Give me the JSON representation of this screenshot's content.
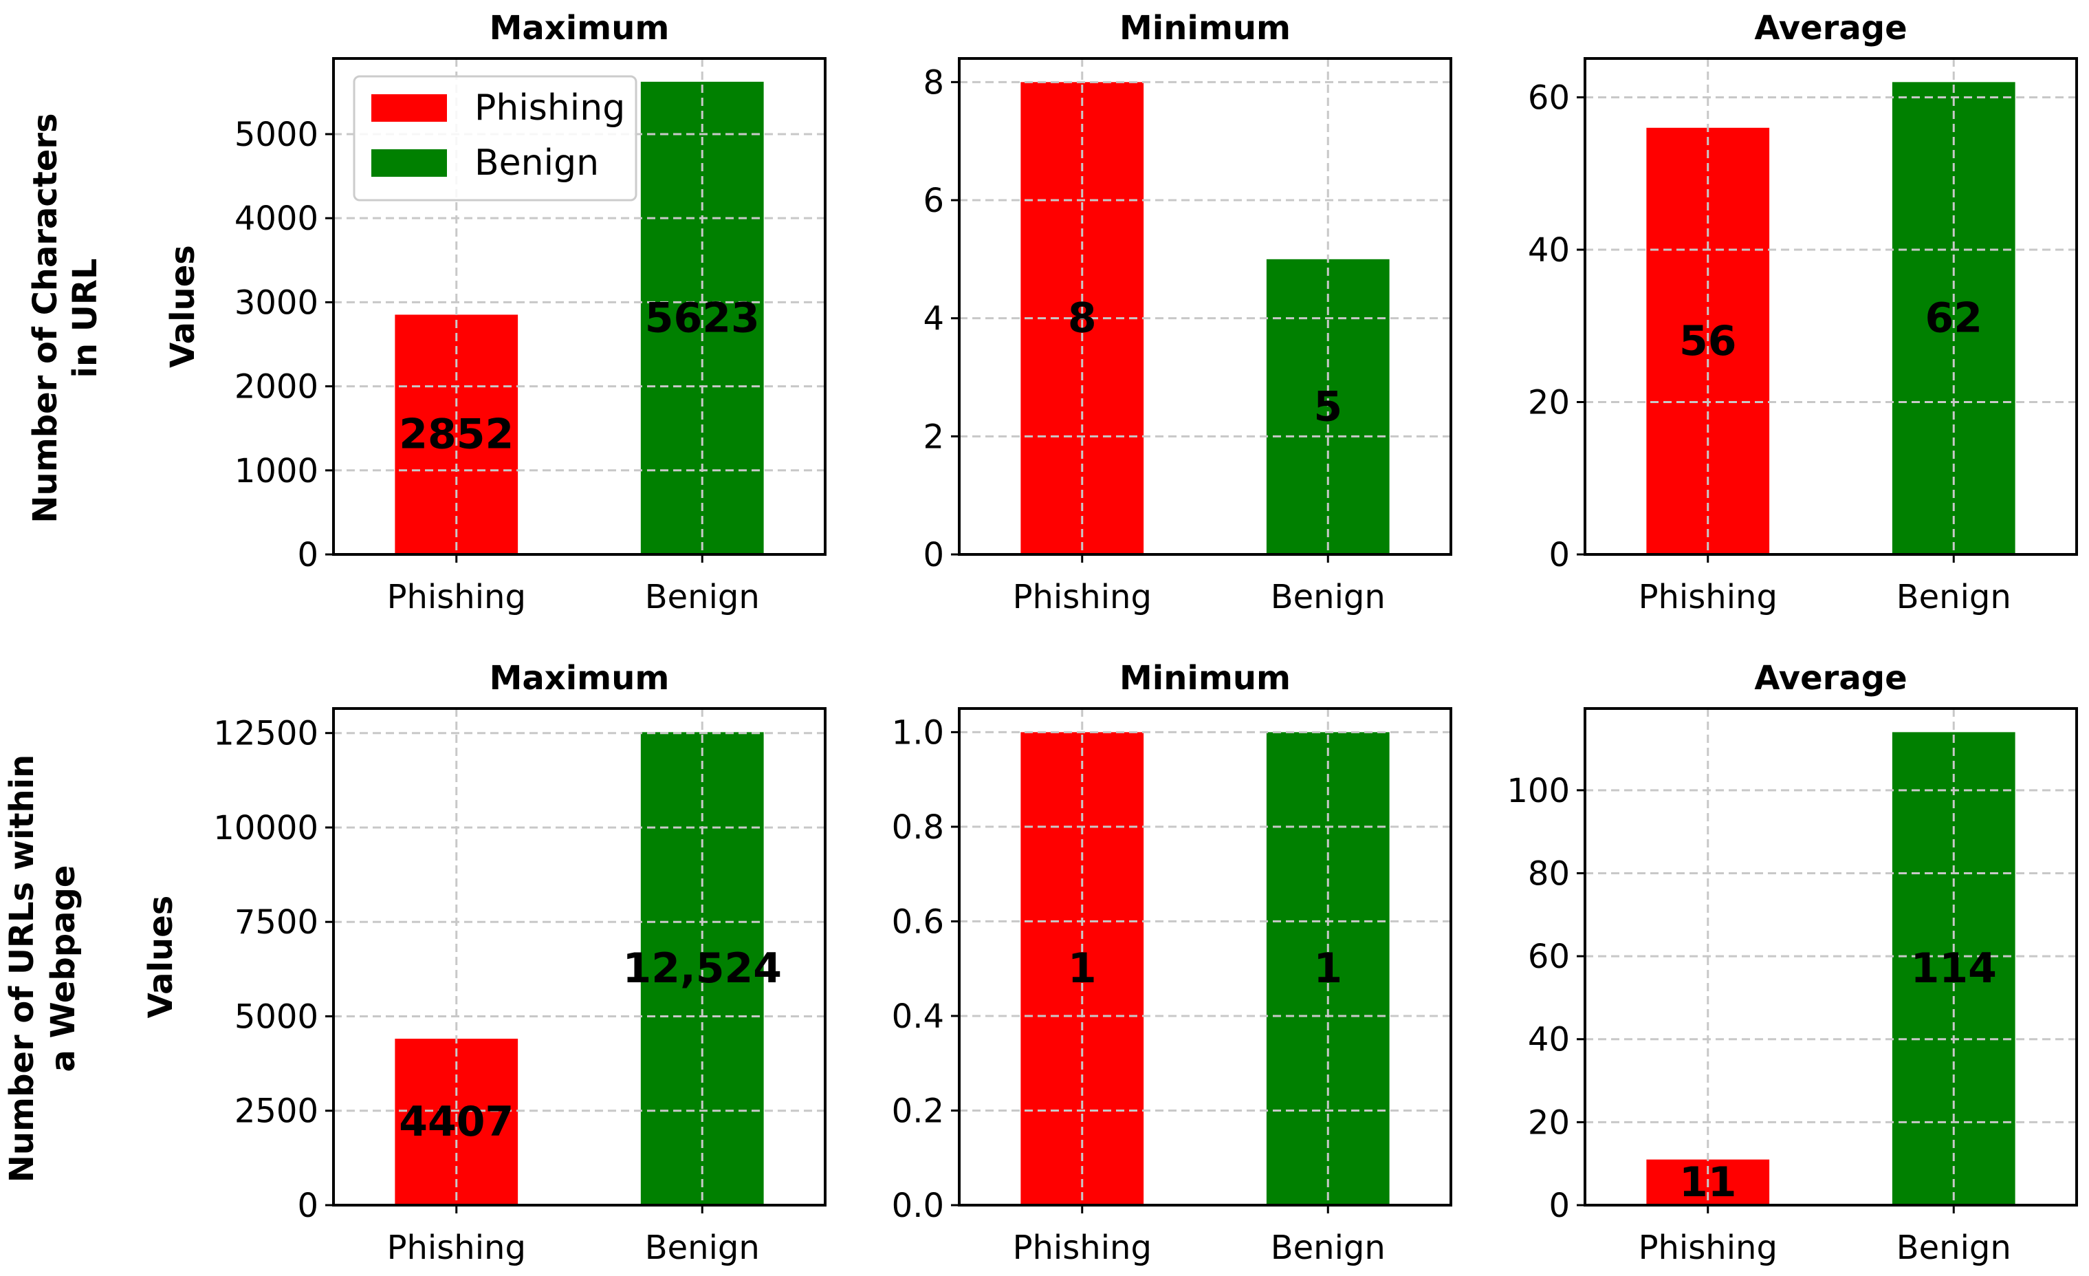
{
  "figure": {
    "row_labels": [
      [
        "Number of Characters",
        "in URL"
      ],
      [
        "Number of URLs within",
        "a Webpage"
      ]
    ],
    "legend": [
      {
        "label": "Phishing",
        "color": "#ff0000"
      },
      {
        "label": "Benign",
        "color": "#008000"
      }
    ]
  },
  "chart_data": [
    {
      "type": "bar",
      "row": 0,
      "col": 0,
      "title": "Maximum",
      "ylabel": "Values",
      "categories": [
        "Phishing",
        "Benign"
      ],
      "values": [
        2852,
        5623
      ],
      "data_labels": [
        "2852",
        "5623"
      ],
      "colors": [
        "#ff0000",
        "#008000"
      ],
      "ylim": [
        0,
        5900
      ],
      "yticks": [
        0,
        1000,
        2000,
        3000,
        4000,
        5000
      ],
      "ytick_labels": [
        "0",
        "1000",
        "2000",
        "3000",
        "4000",
        "5000"
      ],
      "grid": true,
      "legend_position": "top-left"
    },
    {
      "type": "bar",
      "row": 0,
      "col": 1,
      "title": "Minimum",
      "ylabel": "",
      "categories": [
        "Phishing",
        "Benign"
      ],
      "values": [
        8,
        5
      ],
      "data_labels": [
        "8",
        "5"
      ],
      "colors": [
        "#ff0000",
        "#008000"
      ],
      "ylim": [
        0,
        8.4
      ],
      "yticks": [
        0,
        2,
        4,
        6,
        8
      ],
      "ytick_labels": [
        "0",
        "2",
        "4",
        "6",
        "8"
      ],
      "grid": true
    },
    {
      "type": "bar",
      "row": 0,
      "col": 2,
      "title": "Average",
      "ylabel": "",
      "categories": [
        "Phishing",
        "Benign"
      ],
      "values": [
        56,
        62
      ],
      "data_labels": [
        "56",
        "62"
      ],
      "colors": [
        "#ff0000",
        "#008000"
      ],
      "ylim": [
        0,
        65.1
      ],
      "yticks": [
        0,
        20,
        40,
        60
      ],
      "ytick_labels": [
        "0",
        "20",
        "40",
        "60"
      ],
      "grid": true
    },
    {
      "type": "bar",
      "row": 1,
      "col": 0,
      "title": "Maximum",
      "ylabel": "Values",
      "categories": [
        "Phishing",
        "Benign"
      ],
      "values": [
        4407,
        12524
      ],
      "data_labels": [
        "4407",
        "12,524"
      ],
      "colors": [
        "#ff0000",
        "#008000"
      ],
      "ylim": [
        0,
        13150
      ],
      "yticks": [
        0,
        2500,
        5000,
        7500,
        10000,
        12500
      ],
      "ytick_labels": [
        "0",
        "2500",
        "5000",
        "7500",
        "10000",
        "12500"
      ],
      "grid": true
    },
    {
      "type": "bar",
      "row": 1,
      "col": 1,
      "title": "Minimum",
      "ylabel": "",
      "categories": [
        "Phishing",
        "Benign"
      ],
      "values": [
        1,
        1
      ],
      "data_labels": [
        "1",
        "1"
      ],
      "colors": [
        "#ff0000",
        "#008000"
      ],
      "ylim": [
        0,
        1.05
      ],
      "yticks": [
        0,
        0.2,
        0.4,
        0.6,
        0.8,
        1.0
      ],
      "ytick_labels": [
        "0.0",
        "0.2",
        "0.4",
        "0.6",
        "0.8",
        "1.0"
      ],
      "grid": true
    },
    {
      "type": "bar",
      "row": 1,
      "col": 2,
      "title": "Average",
      "ylabel": "",
      "categories": [
        "Phishing",
        "Benign"
      ],
      "values": [
        11,
        114
      ],
      "data_labels": [
        "11",
        "114"
      ],
      "colors": [
        "#ff0000",
        "#008000"
      ],
      "ylim": [
        0,
        119.7
      ],
      "yticks": [
        0,
        20,
        40,
        60,
        80,
        100
      ],
      "ytick_labels": [
        "0",
        "20",
        "40",
        "60",
        "80",
        "100"
      ],
      "grid": true
    }
  ]
}
